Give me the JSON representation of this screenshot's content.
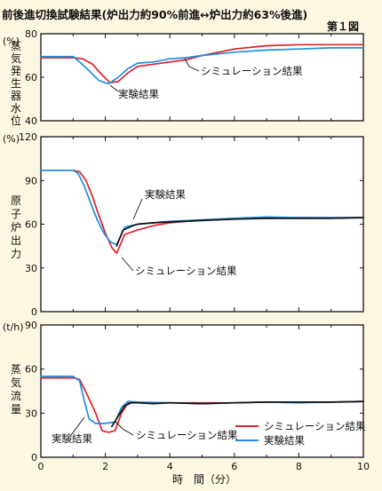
{
  "header": {
    "title": "前後進切換試験結果(炉出力約90%前進↔炉出力約63%後進)",
    "figure_label": "第１図"
  },
  "colors": {
    "simulation": "#e0202a",
    "experiment": "#1e8fe0",
    "measured_final": "#111111",
    "frame": "#111111",
    "background": "#fdf6e1"
  },
  "chart_data": [
    {
      "type": "line",
      "ylabel": "蒸気発生器水位",
      "unit": "(%)",
      "ylim": [
        40,
        80
      ],
      "yticks": [
        "40",
        "60",
        "80"
      ],
      "xlim": [
        0,
        10
      ],
      "annotations": [
        {
          "text": "実験結果",
          "series": "実験結果"
        },
        {
          "text": "シミュレーション結果",
          "series": "シミュレーション結果"
        }
      ],
      "series": [
        {
          "name": "シミュレーション結果",
          "color": "#e0202a",
          "x": [
            0,
            1,
            1.3,
            1.6,
            1.9,
            2.15,
            2.4,
            2.7,
            3,
            3.5,
            4,
            4.5,
            5,
            6,
            7,
            8,
            9,
            10
          ],
          "values": [
            69,
            69,
            68.5,
            66,
            61,
            57.5,
            58,
            62,
            65,
            66,
            67,
            68,
            70,
            73,
            74.5,
            75,
            75,
            75
          ]
        },
        {
          "name": "実験結果",
          "color": "#1e8fe0",
          "x": [
            0,
            1,
            1.2,
            1.5,
            1.8,
            2.1,
            2.4,
            2.7,
            3,
            3.5,
            4,
            4.5,
            5,
            6,
            7,
            8,
            9,
            10
          ],
          "values": [
            69.5,
            69.5,
            67,
            63,
            58.5,
            57,
            60,
            64,
            66.5,
            67,
            68.5,
            69,
            70,
            71.5,
            72.5,
            73,
            73.5,
            73.5
          ]
        }
      ]
    },
    {
      "type": "line",
      "ylabel": "原子炉出力",
      "unit": "(%)",
      "ylim": [
        0,
        120
      ],
      "yticks": [
        "0",
        "30",
        "60",
        "90",
        "120"
      ],
      "xlim": [
        0,
        10
      ],
      "annotations": [
        {
          "text": "実験結果",
          "series": "実験結果"
        },
        {
          "text": "シミュレーション結果",
          "series": "シミュレーション結果"
        }
      ],
      "series": [
        {
          "name": "シミュレーション結果",
          "color": "#e0202a",
          "x": [
            0,
            1,
            1.2,
            1.4,
            1.6,
            1.8,
            2.0,
            2.2,
            2.35,
            2.6,
            3,
            3.5,
            4,
            5,
            6,
            7,
            8,
            9,
            10
          ],
          "values": [
            97,
            97,
            96,
            90,
            79,
            66,
            54,
            44,
            40,
            53,
            56,
            59,
            61,
            63,
            64,
            64,
            64.5,
            64.5,
            64.5
          ]
        },
        {
          "name": "実験結果",
          "color": "#1e8fe0",
          "x": [
            0,
            1,
            1.15,
            1.35,
            1.55,
            1.75,
            1.95,
            2.15,
            2.35,
            2.6,
            3,
            3.5,
            4,
            5,
            6,
            7,
            8,
            9,
            10
          ],
          "values": [
            97,
            97,
            95,
            86,
            74,
            63,
            54,
            48,
            46,
            58,
            60,
            61,
            62,
            63,
            64,
            65,
            64.5,
            64.5,
            64.5
          ]
        },
        {
          "name": "",
          "color": "#111111",
          "x": [
            2.35,
            2.55,
            2.8,
            3,
            3.5,
            4,
            5,
            6,
            7,
            8,
            9,
            10
          ],
          "values": [
            45,
            56,
            58.5,
            60,
            61,
            61.5,
            62.5,
            63.5,
            64,
            64,
            64,
            64.5
          ]
        }
      ]
    },
    {
      "type": "line",
      "ylabel": "蒸気流量",
      "unit": "(t/h)",
      "ylim": [
        0,
        90
      ],
      "yticks": [
        "0",
        "30",
        "60",
        "90"
      ],
      "xlim": [
        0,
        10
      ],
      "xticks": [
        "0",
        "2",
        "4",
        "6",
        "8",
        "10"
      ],
      "xlabel": "時　間（分）",
      "legend": {
        "position": "bottom-right",
        "entries": [
          "シミュレーション結果",
          "実験結果"
        ]
      },
      "annotations": [
        {
          "text": "実験結果",
          "series": "実験結果"
        },
        {
          "text": "シミュレーション結果",
          "series": "シミュレーション結果"
        }
      ],
      "series": [
        {
          "name": "シミュレーション結果",
          "color": "#e0202a",
          "x": [
            0,
            1,
            1.2,
            1.45,
            1.7,
            1.9,
            2.1,
            2.3,
            2.5,
            2.7,
            3,
            4,
            5,
            6,
            7,
            8,
            9,
            10
          ],
          "values": [
            54,
            54,
            53,
            42,
            30,
            18,
            17,
            18,
            30,
            37,
            37,
            37,
            37,
            37,
            37.5,
            37.5,
            37.5,
            38
          ]
        },
        {
          "name": "実験結果",
          "color": "#1e8fe0",
          "x": [
            0,
            1,
            1.2,
            1.35,
            1.5,
            1.7,
            2.0,
            2.3,
            2.5,
            2.7,
            3,
            4,
            5,
            6,
            7,
            8,
            9,
            10
          ],
          "values": [
            55,
            55,
            52,
            38,
            26,
            23,
            23,
            24,
            34,
            38,
            37.5,
            37,
            36.5,
            37,
            37.5,
            37,
            37.5,
            38
          ]
        },
        {
          "name": "",
          "color": "#111111",
          "x": [
            2.2,
            2.4,
            2.6,
            2.8,
            3,
            3.5,
            4,
            5,
            6,
            7,
            8,
            9,
            10
          ],
          "values": [
            21,
            28,
            35,
            37,
            37,
            36.5,
            37,
            36.5,
            37,
            37.5,
            37.5,
            37.5,
            38
          ]
        }
      ]
    }
  ]
}
